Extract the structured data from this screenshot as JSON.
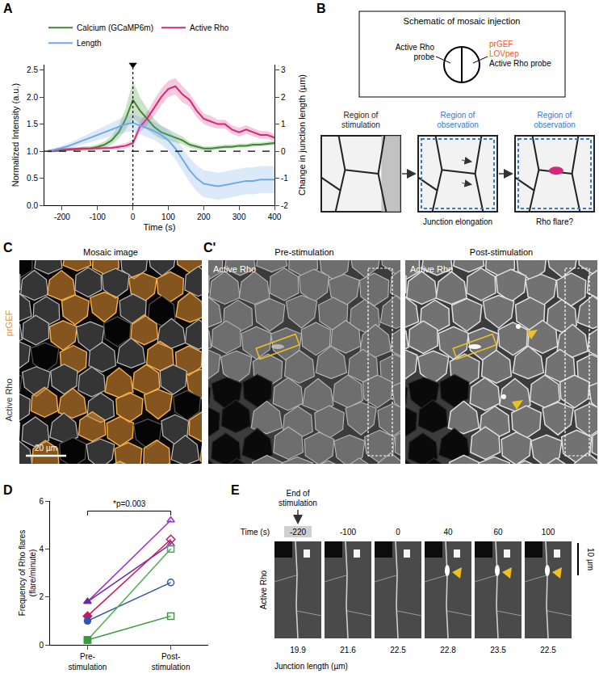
{
  "panel_labels": [
    "A",
    "B",
    "C",
    "C'",
    "D",
    "E"
  ],
  "chart_data": [
    {
      "type": "line",
      "x_label": "Time (s)",
      "y_label": "Normalized Intensity (a.u.)",
      "y2_label": "Change in junction length (µm)",
      "x": [
        -240,
        -220,
        -200,
        -180,
        -160,
        -140,
        -120,
        -100,
        -80,
        -60,
        -40,
        -20,
        0,
        20,
        40,
        60,
        80,
        100,
        120,
        140,
        160,
        180,
        200,
        220,
        240,
        260,
        280,
        300,
        320,
        340,
        360,
        380,
        400
      ],
      "xlim": [
        -250,
        400
      ],
      "xticks": [
        -200,
        -100,
        0,
        100,
        200,
        300,
        400
      ],
      "ylim": [
        0,
        2.6
      ],
      "yticks": [
        {
          "value": 0,
          "label": "0.0"
        },
        0.5,
        {
          "value": 1,
          "label": "1.0"
        },
        1.5,
        {
          "value": 2,
          "label": "2.0"
        },
        2.5
      ],
      "y2lim": [
        -2,
        3.2
      ],
      "y2ticks": [
        -2,
        -1,
        0,
        1,
        2,
        3
      ],
      "grid": false,
      "legend": "top",
      "reference_lines": {
        "x": 0,
        "y": 1
      },
      "series": [
        {
          "name": "Calcium (GCaMP6m)",
          "color": "#3a8a2e",
          "values": [
            1.0,
            1.0,
            1.02,
            1.03,
            1.03,
            1.05,
            1.05,
            1.08,
            1.12,
            1.2,
            1.35,
            1.6,
            1.95,
            1.75,
            1.6,
            1.45,
            1.35,
            1.3,
            1.25,
            1.2,
            1.12,
            1.08,
            1.05,
            1.05,
            1.07,
            1.08,
            1.08,
            1.1,
            1.1,
            1.12,
            1.12,
            1.13,
            1.15
          ],
          "error": [
            0.02,
            0.02,
            0.03,
            0.03,
            0.03,
            0.04,
            0.04,
            0.05,
            0.06,
            0.08,
            0.12,
            0.2,
            0.35,
            0.25,
            0.2,
            0.15,
            0.12,
            0.1,
            0.08,
            0.07,
            0.05,
            0.05,
            0.04,
            0.04,
            0.04,
            0.04,
            0.04,
            0.04,
            0.04,
            0.04,
            0.04,
            0.04,
            0.04
          ]
        },
        {
          "name": "Active Rho",
          "color": "#d6287a",
          "values": [
            1.0,
            1.02,
            1.03,
            1.04,
            1.05,
            1.05,
            1.05,
            1.05,
            1.05,
            1.06,
            1.08,
            1.1,
            1.15,
            1.45,
            1.6,
            1.8,
            2.0,
            2.15,
            2.2,
            2.05,
            1.95,
            1.75,
            1.6,
            1.55,
            1.5,
            1.5,
            1.4,
            1.35,
            1.4,
            1.35,
            1.3,
            1.3,
            1.25
          ],
          "error": [
            0.03,
            0.03,
            0.03,
            0.03,
            0.03,
            0.03,
            0.03,
            0.03,
            0.03,
            0.03,
            0.04,
            0.05,
            0.06,
            0.1,
            0.12,
            0.15,
            0.15,
            0.15,
            0.15,
            0.15,
            0.12,
            0.12,
            0.1,
            0.1,
            0.08,
            0.08,
            0.08,
            0.08,
            0.08,
            0.07,
            0.07,
            0.07,
            0.07
          ]
        },
        {
          "name": "Length",
          "color": "#6fa8e8",
          "axis": "y2",
          "values": [
            0,
            0.05,
            0.12,
            0.2,
            0.3,
            0.4,
            0.5,
            0.6,
            0.7,
            0.8,
            0.9,
            1.0,
            1.05,
            0.95,
            0.85,
            0.75,
            0.6,
            0.4,
            0.1,
            -0.3,
            -0.7,
            -1.0,
            -1.2,
            -1.25,
            -1.3,
            -1.25,
            -1.2,
            -1.15,
            -1.1,
            -1.1,
            -1.05,
            -1.05,
            -1.05
          ],
          "error": [
            0.02,
            0.05,
            0.08,
            0.1,
            0.12,
            0.15,
            0.18,
            0.2,
            0.22,
            0.25,
            0.28,
            0.3,
            0.32,
            0.32,
            0.32,
            0.33,
            0.35,
            0.38,
            0.4,
            0.42,
            0.45,
            0.48,
            0.5,
            0.5,
            0.5,
            0.5,
            0.5,
            0.5,
            0.5,
            0.5,
            0.5,
            0.5,
            0.5
          ]
        }
      ]
    },
    {
      "type": "line",
      "y_label": "Frequency of Rho flares (flare/minute)",
      "categories": [
        "Pre-stimulation",
        "Post-stimulation"
      ],
      "ylim": [
        0,
        6
      ],
      "yticks": [
        0,
        2,
        4,
        6
      ],
      "grid": false,
      "significance": {
        "label": "*p=0.003",
        "between": [
          "Pre-stimulation",
          "Post-stimulation"
        ]
      },
      "series": [
        {
          "color": "#9b30d0",
          "marker": "triangle-up",
          "values": [
            1.8,
            5.2
          ]
        },
        {
          "color": "#6a2aa8",
          "marker": "triangle-up",
          "values": [
            1.8,
            4.2
          ]
        },
        {
          "color": "#c8185a",
          "marker": "diamond",
          "values": [
            1.2,
            4.4
          ]
        },
        {
          "color": "#2f56a8",
          "marker": "circle",
          "values": [
            1.0,
            2.6
          ]
        },
        {
          "color": "#4cae4c",
          "marker": "square",
          "values": [
            0.2,
            4.0
          ]
        },
        {
          "color": "#3a9a3a",
          "marker": "square",
          "values": [
            0.2,
            1.2
          ]
        }
      ]
    }
  ],
  "schematic": {
    "title": "Schematic of mosaic injection",
    "left_labels": [
      "Active Rho",
      "probe"
    ],
    "right_labels": [
      {
        "text": "prGEF",
        "color": "#e8601c"
      },
      {
        "text": "LOVpep",
        "color": "#e8601c"
      },
      {
        "text": "Active Rho probe",
        "color": "#000000"
      }
    ],
    "steps": [
      {
        "title": [
          "Region of",
          "stimulation"
        ],
        "color": "#222222"
      },
      {
        "title": [
          "Region of",
          "observation"
        ],
        "color": "#3a78c8",
        "caption": "Junction elongation"
      },
      {
        "title": [
          "Region of",
          "observation"
        ],
        "color": "#3a78c8",
        "caption": "Rho flare?"
      }
    ]
  },
  "mosaic_image": {
    "title": "Mosaic image",
    "channels": [
      {
        "text": "prGEF",
        "color": "#e8901c"
      },
      {
        "text": "Active Rho",
        "color": "#333333"
      }
    ],
    "scale_bar": "20 µm"
  },
  "stimulation_images": {
    "panels": [
      {
        "title": "Pre-stimulation",
        "channel": "Active Rho"
      },
      {
        "title": "Post-stimulation",
        "channel": "Active Rho"
      }
    ]
  },
  "timelapse": {
    "marker_label": [
      "End of",
      "stimulation"
    ],
    "time_label": "Time (s)",
    "times": [
      -220,
      -100,
      0,
      40,
      60,
      100
    ],
    "channel": "Active Rho",
    "scale_bar": "10 µm",
    "length_label": "Junction length (µm)",
    "lengths": [
      19.9,
      21.6,
      22.5,
      22.8,
      23.5,
      22.5
    ]
  }
}
